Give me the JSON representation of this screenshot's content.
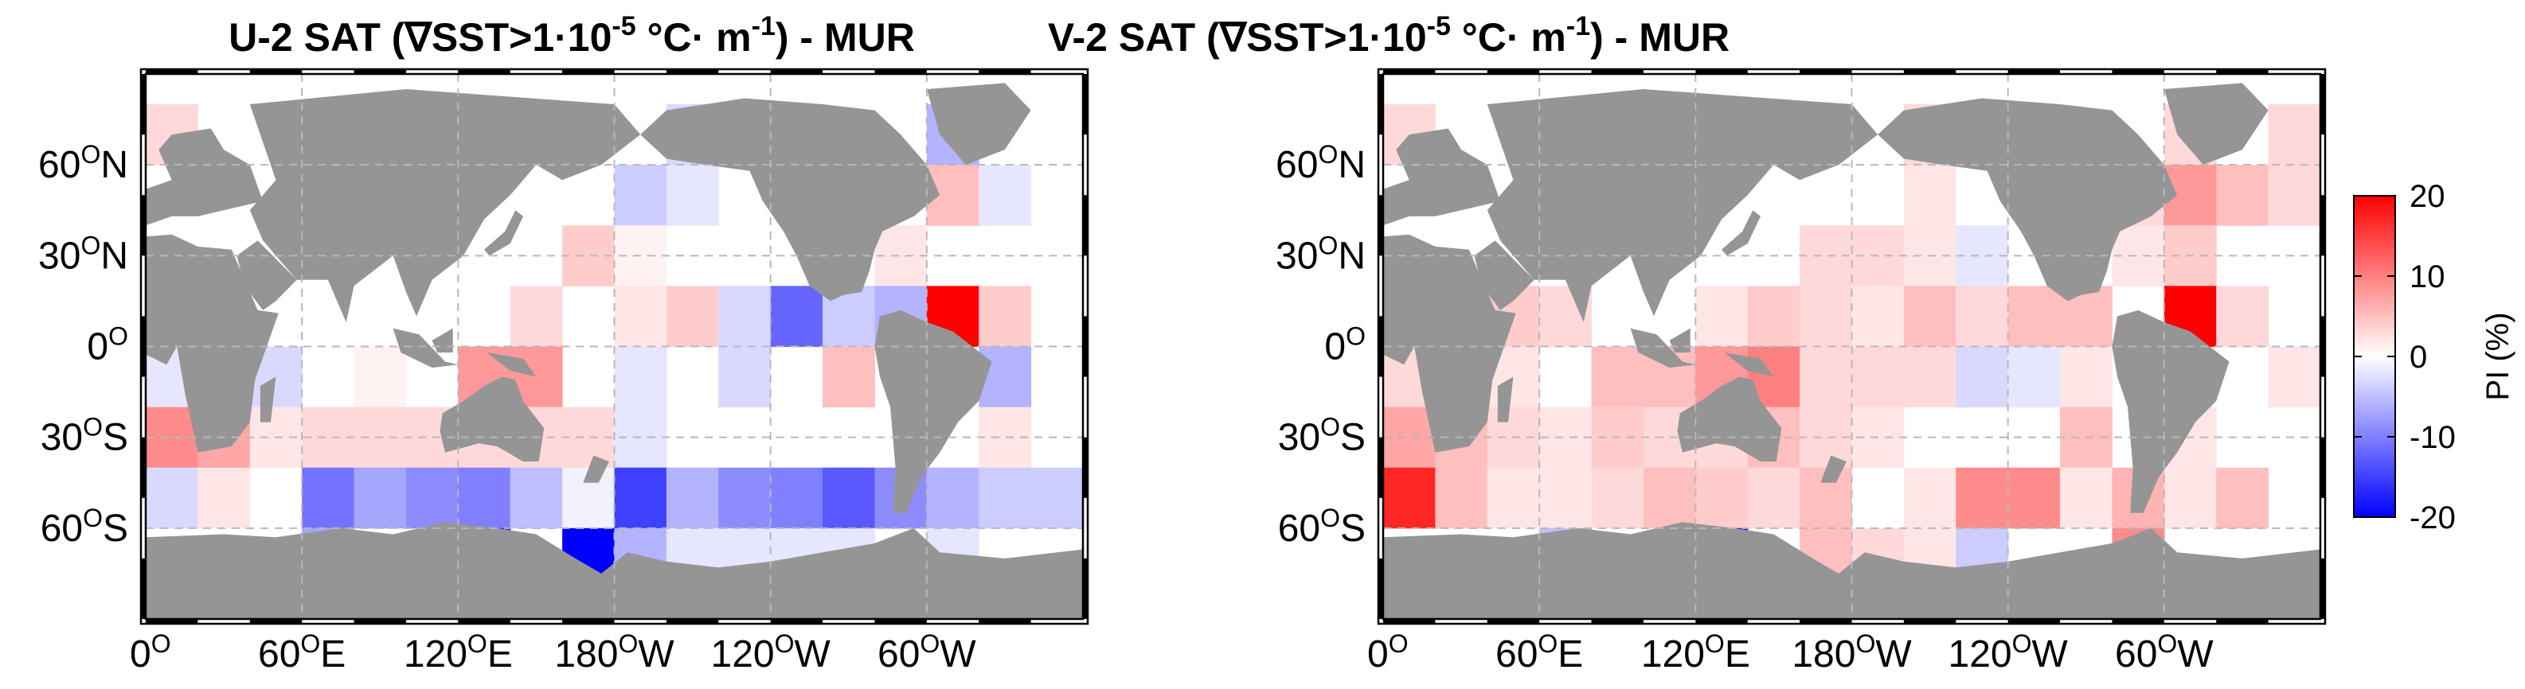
{
  "chart_data": [
    {
      "type": "heatmap",
      "title": "U-2 SAT (∇SST>1·10⁻⁵ °C· m⁻¹) - MUR",
      "title_parts": {
        "base": "U-2 SAT (∇SST>1·10",
        "exp1": "-5",
        "mid": " °C· m",
        "exp2": "-1",
        "end": ") - MUR"
      },
      "x_ticks": [
        {
          "value": 0,
          "label": "0O"
        },
        {
          "value": 60,
          "label": "60OE"
        },
        {
          "value": 120,
          "label": "120OE"
        },
        {
          "value": 180,
          "label": "180OW"
        },
        {
          "value": 240,
          "label": "120OW"
        },
        {
          "value": 300,
          "label": "60OW"
        }
      ],
      "y_ticks": [
        {
          "value": 60,
          "label": "60ON"
        },
        {
          "value": 30,
          "label": "30ON"
        },
        {
          "value": 0,
          "label": "0O"
        },
        {
          "value": -30,
          "label": "30OS"
        },
        {
          "value": -60,
          "label": "60OS"
        }
      ],
      "xlim": [
        0,
        360
      ],
      "ylim": [
        -90,
        90
      ],
      "grid": true,
      "cell_size_deg": 20,
      "rows_lat_top": [
        80,
        60,
        40,
        20,
        0,
        -20,
        -40,
        -60
      ],
      "cols_lon_left": [
        0,
        20,
        40,
        60,
        80,
        100,
        120,
        140,
        160,
        180,
        200,
        220,
        240,
        260,
        280,
        300,
        320,
        340
      ],
      "values": [
        [
          3,
          0,
          0,
          0,
          0,
          0,
          0,
          0,
          0,
          0,
          -3,
          0,
          0,
          0,
          0,
          -6,
          0,
          0
        ],
        [
          0,
          0,
          0,
          0,
          0,
          0,
          0,
          0,
          0,
          -4,
          -2,
          0,
          0,
          0,
          0,
          5,
          -2,
          0
        ],
        [
          0,
          0,
          0,
          0,
          0,
          0,
          0,
          0,
          4,
          1,
          0,
          0,
          0,
          0,
          2,
          0,
          0,
          0
        ],
        [
          0,
          0,
          0,
          0,
          0,
          0,
          0,
          3,
          0,
          2,
          4,
          -3,
          -12,
          -4,
          -6,
          20,
          4,
          0
        ],
        [
          -2,
          -4,
          -3,
          0,
          1,
          0,
          8,
          8,
          0,
          -2,
          0,
          -3,
          0,
          5,
          0,
          0,
          -6,
          0
        ],
        [
          9,
          7,
          2,
          3,
          3,
          3,
          3,
          3,
          3,
          -2,
          0,
          0,
          0,
          0,
          0,
          0,
          2,
          0
        ],
        [
          -3,
          2,
          0,
          -11,
          -7,
          -9,
          -10,
          -5,
          -1,
          -15,
          -6,
          -9,
          -10,
          -13,
          -9,
          -6,
          -4,
          -4
        ],
        [
          0,
          0,
          0,
          -7,
          0,
          0,
          -18,
          0,
          -22,
          -6,
          -2,
          -2,
          -2,
          -2,
          0,
          -2,
          0,
          0
        ]
      ]
    },
    {
      "type": "heatmap",
      "title": "V-2 SAT (∇SST>1·10⁻⁵ °C· m⁻¹) - MUR",
      "title_parts": {
        "base": "V-2 SAT (∇SST>1·10",
        "exp1": "-5",
        "mid": " °C· m",
        "exp2": "-1",
        "end": ") - MUR"
      },
      "x_ticks": [
        {
          "value": 0,
          "label": "0O"
        },
        {
          "value": 60,
          "label": "60OE"
        },
        {
          "value": 120,
          "label": "120OE"
        },
        {
          "value": 180,
          "label": "180OW"
        },
        {
          "value": 240,
          "label": "120OW"
        },
        {
          "value": 300,
          "label": "60OW"
        }
      ],
      "y_ticks": [
        {
          "value": 60,
          "label": "60ON"
        },
        {
          "value": 30,
          "label": "30ON"
        },
        {
          "value": 0,
          "label": "0O"
        },
        {
          "value": -30,
          "label": "30OS"
        },
        {
          "value": -60,
          "label": "60OS"
        }
      ],
      "xlim": [
        0,
        360
      ],
      "ylim": [
        -90,
        90
      ],
      "grid": true,
      "cell_size_deg": 20,
      "rows_lat_top": [
        80,
        60,
        40,
        20,
        0,
        -20,
        -40,
        -60
      ],
      "cols_lon_left": [
        0,
        20,
        40,
        60,
        80,
        100,
        120,
        140,
        160,
        180,
        200,
        220,
        240,
        260,
        280,
        300,
        320,
        340
      ],
      "values": [
        [
          3,
          0,
          0,
          0,
          0,
          0,
          0,
          0,
          0,
          0,
          3,
          0,
          0,
          0,
          0,
          3,
          0,
          3
        ],
        [
          0,
          0,
          0,
          0,
          0,
          0,
          0,
          0,
          0,
          0,
          2,
          0,
          0,
          0,
          3,
          8,
          5,
          3
        ],
        [
          0,
          0,
          0,
          0,
          0,
          0,
          0,
          0,
          3,
          3,
          2,
          -2,
          0,
          0,
          2,
          4,
          0,
          0
        ],
        [
          0,
          3,
          4,
          3,
          0,
          0,
          2,
          4,
          3,
          2,
          5,
          3,
          5,
          5,
          0,
          20,
          3,
          0
        ],
        [
          3,
          -4,
          2,
          0,
          5,
          5,
          8,
          10,
          3,
          3,
          3,
          -3,
          -2,
          2,
          0,
          0,
          0,
          2
        ],
        [
          7,
          5,
          3,
          2,
          4,
          3,
          3,
          5,
          3,
          2,
          0,
          0,
          0,
          5,
          0,
          2,
          0,
          0
        ],
        [
          17,
          5,
          2,
          2,
          3,
          5,
          4,
          3,
          5,
          0,
          2,
          9,
          9,
          2,
          6,
          2,
          5,
          0
        ],
        [
          0,
          0,
          0,
          -5,
          0,
          0,
          -20,
          0,
          5,
          3,
          2,
          -4,
          0,
          0,
          9,
          0,
          0,
          0
        ]
      ]
    }
  ],
  "colorbar": {
    "label": "PI (%)",
    "min": -20,
    "max": 20,
    "ticks": [
      {
        "value": 20,
        "label": "20"
      },
      {
        "value": 10,
        "label": "10"
      },
      {
        "value": 0,
        "label": "0"
      },
      {
        "value": -10,
        "label": "-10"
      },
      {
        "value": -20,
        "label": "-20"
      }
    ],
    "colors": {
      "neg": "#0000ff",
      "mid": "#ffffff",
      "pos": "#ff0000"
    }
  },
  "colors": {
    "land": "#959595",
    "grid": "#b8b8b8",
    "frame": "#000000"
  }
}
